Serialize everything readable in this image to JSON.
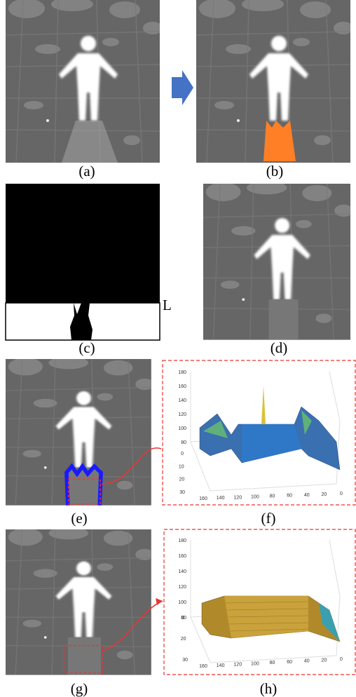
{
  "panels": [
    {
      "label": "(a)"
    },
    {
      "label": "(b)"
    },
    {
      "label": "(c)"
    },
    {
      "label": "(d)"
    },
    {
      "label": "(e)"
    },
    {
      "label": "(f)"
    },
    {
      "label": "(g)"
    },
    {
      "label": "(h)"
    }
  ],
  "line_label": "L",
  "plot_f": {
    "z_ticks": [
      180,
      160,
      140,
      120,
      100,
      80
    ],
    "y_ticks": [
      0,
      10,
      20,
      30
    ],
    "x_ticks": [
      160,
      140,
      120,
      100,
      80,
      60,
      40,
      20,
      0
    ]
  },
  "plot_h": {
    "z_ticks": [
      180,
      160,
      140,
      120,
      100,
      80
    ],
    "y_ticks": [
      0,
      20,
      30
    ],
    "x_ticks": [
      160,
      140,
      120,
      100,
      80,
      60,
      40,
      20,
      0
    ]
  }
}
